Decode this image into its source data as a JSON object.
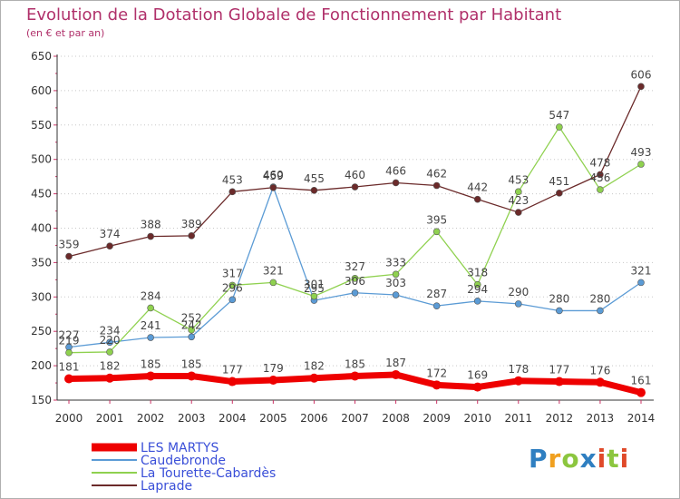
{
  "header": {
    "title": "Evolution de la Dotation Globale de Fonctionnement par Habitant",
    "subtitle": "(en € et par an)"
  },
  "logo": {
    "text": "Proxiti",
    "parts": [
      "P",
      "r",
      "o",
      "x",
      "i",
      "t",
      "i"
    ]
  },
  "chart_data": {
    "type": "line",
    "title": "Evolution de la Dotation Globale de Fonctionnement par Habitant",
    "subtitle": "(en € et par an)",
    "xlabel": "",
    "ylabel": "",
    "x": [
      "2000",
      "2001",
      "2002",
      "2003",
      "2004",
      "2005",
      "2006",
      "2007",
      "2008",
      "2009",
      "2010",
      "2011",
      "2012",
      "2013",
      "2014"
    ],
    "ylim": [
      150,
      650
    ],
    "yticks": [
      150,
      200,
      250,
      300,
      350,
      400,
      450,
      500,
      550,
      600,
      650
    ],
    "grid": "horizontal dotted",
    "legend_position": "bottom-left",
    "series": [
      {
        "name": "LES MARTYS",
        "color": "#ee0000",
        "values": [
          181,
          182,
          185,
          185,
          177,
          179,
          182,
          185,
          187,
          172,
          169,
          178,
          177,
          176,
          161
        ]
      },
      {
        "name": "Caudebronde",
        "color": "#5b9bd5",
        "values": [
          227,
          234,
          241,
          242,
          296,
          460,
          295,
          306,
          303,
          287,
          294,
          290,
          280,
          280,
          321
        ]
      },
      {
        "name": "La Tourette-Cabardès",
        "color": "#8fd14f",
        "values": [
          219,
          220,
          284,
          252,
          317,
          321,
          301,
          327,
          333,
          395,
          318,
          453,
          547,
          456,
          493
        ]
      },
      {
        "name": "Laprade",
        "color": "#6b2a2a",
        "values": [
          359,
          374,
          388,
          389,
          453,
          459,
          455,
          460,
          466,
          462,
          442,
          423,
          451,
          478,
          606
        ]
      }
    ]
  }
}
